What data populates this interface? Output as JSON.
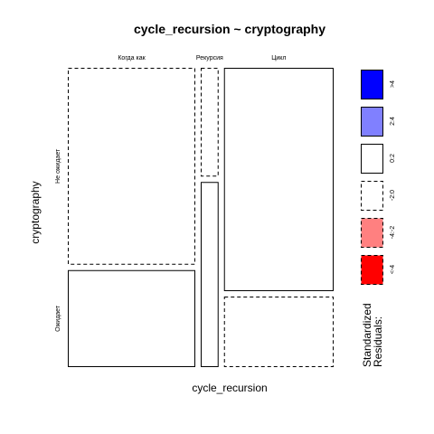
{
  "chart_data": {
    "type": "mosaic",
    "title": "cycle_recursion ~ cryptography",
    "xlabel": "cycle_recursion",
    "ylabel": "cryptography",
    "x_categories": [
      "Когда как",
      "Рекурсия",
      "Цикл"
    ],
    "y_categories": [
      "Не ожидает",
      "Ожидает"
    ],
    "column_shares": [
      0.5,
      0.07,
      0.43
    ],
    "cells": [
      {
        "x": "Когда как",
        "y": "Не ожидает",
        "share_in_column": 0.67,
        "residual_class": "-2:0"
      },
      {
        "x": "Когда как",
        "y": "Ожидает",
        "share_in_column": 0.33,
        "residual_class": "0:2"
      },
      {
        "x": "Рекурсия",
        "y": "Не ожидает",
        "share_in_column": 0.37,
        "residual_class": "-2:0"
      },
      {
        "x": "Рекурсия",
        "y": "Ожидает",
        "share_in_column": 0.63,
        "residual_class": "0:2"
      },
      {
        "x": "Цикл",
        "y": "Не ожидает",
        "share_in_column": 0.76,
        "residual_class": "0:2"
      },
      {
        "x": "Цикл",
        "y": "Ожидает",
        "share_in_column": 0.24,
        "residual_class": "-2:0"
      }
    ],
    "legend": {
      "title": "Standardized Residuals:",
      "items": [
        {
          "label": ">4",
          "fill": "#0000ff",
          "dashed": false
        },
        {
          "label": "2:4",
          "fill": "#8080ff",
          "dashed": false
        },
        {
          "label": "0:2",
          "fill": "#ffffff",
          "dashed": false
        },
        {
          "label": "-2:0",
          "fill": "#ffffff",
          "dashed": true
        },
        {
          "label": "-4:-2",
          "fill": "#ff8080",
          "dashed": true
        },
        {
          "label": "<-4",
          "fill": "#ff0000",
          "dashed": true
        }
      ]
    }
  }
}
